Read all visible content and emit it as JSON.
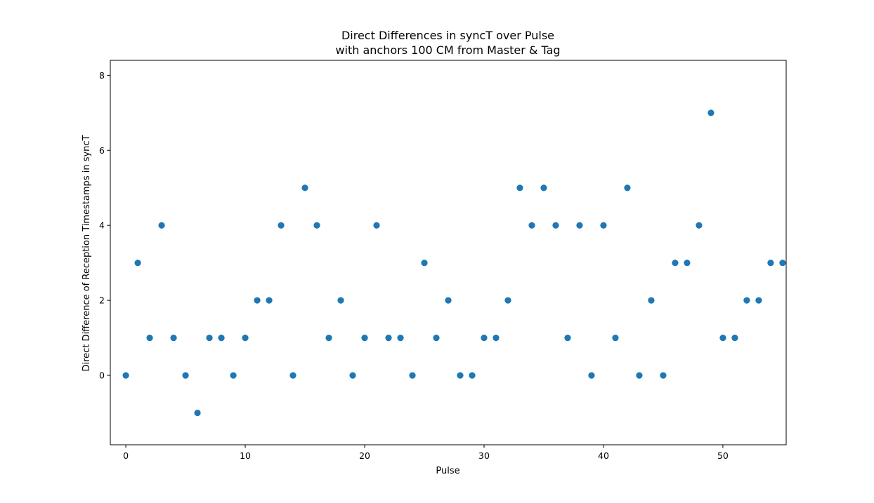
{
  "chart_data": {
    "type": "scatter",
    "title": "Direct Differences in syncT over Pulse",
    "subtitle": "with anchors 100 CM from Master & Tag",
    "xlabel": "Pulse",
    "ylabel": "Direct Difference of Reception Timestamps in syncT",
    "xlim": [
      -1.3,
      55.3
    ],
    "ylim": [
      -1.85,
      8.4
    ],
    "x_ticks": [
      0,
      10,
      20,
      30,
      40,
      50
    ],
    "y_ticks": [
      0,
      2,
      4,
      6,
      8
    ],
    "grid": false,
    "legend": "none",
    "marker_color": "#1f77b4",
    "x": [
      0,
      1,
      2,
      3,
      4,
      5,
      6,
      7,
      8,
      9,
      10,
      11,
      12,
      13,
      14,
      15,
      16,
      17,
      18,
      19,
      20,
      21,
      22,
      23,
      24,
      25,
      26,
      27,
      28,
      29,
      30,
      31,
      32,
      33,
      34,
      35,
      36,
      37,
      38,
      39,
      40,
      41,
      42,
      43,
      44,
      45,
      46,
      47,
      48,
      49,
      50,
      51,
      52,
      53,
      54,
      55
    ],
    "y": [
      0,
      3,
      1,
      4,
      1,
      0,
      -1,
      1,
      1,
      0,
      1,
      2,
      2,
      4,
      0,
      5,
      4,
      1,
      2,
      0,
      1,
      4,
      1,
      1,
      0,
      3,
      1,
      2,
      0,
      0,
      1,
      1,
      2,
      5,
      4,
      5,
      4,
      1,
      4,
      0,
      4,
      1,
      5,
      0,
      2,
      0,
      3,
      3,
      4,
      7,
      1,
      1,
      2,
      2,
      3,
      3
    ]
  }
}
